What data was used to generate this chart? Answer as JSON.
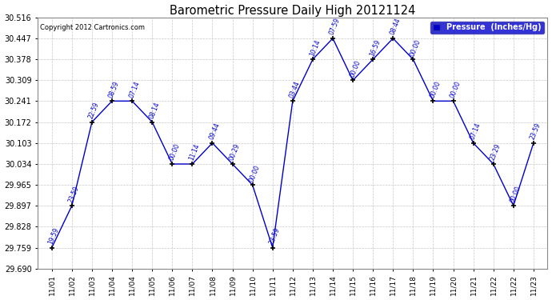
{
  "title": "Barometric Pressure Daily High 20121124",
  "copyright_text": "Copyright 2012 Cartronics.com",
  "legend_label": "Pressure  (Inches/Hg)",
  "background_color": "#ffffff",
  "plot_bg_color": "#ffffff",
  "line_color": "#0000cc",
  "marker_color": "#000000",
  "grid_color": "#c8c8c8",
  "ylim": [
    29.69,
    30.516
  ],
  "yticks": [
    29.69,
    29.759,
    29.828,
    29.897,
    29.965,
    30.034,
    30.103,
    30.172,
    30.241,
    30.309,
    30.378,
    30.447,
    30.516
  ],
  "x_dates": [
    "11/01",
    "11/02",
    "11/03",
    "11/04",
    "11/04",
    "11/05",
    "11/06",
    "11/07",
    "11/08",
    "11/09",
    "11/10",
    "11/11",
    "11/12",
    "11/13",
    "11/14",
    "11/15",
    "11/16",
    "11/17",
    "11/18",
    "11/19",
    "11/20",
    "11/21",
    "11/22",
    "11/22",
    "11/23"
  ],
  "x_tick_labels": [
    "11/01",
    "11/02",
    "11/03",
    "11/04",
    "11/04",
    "11/05",
    "11/06",
    "11/07",
    "11/08",
    "11/09",
    "11/10",
    "11/11",
    "11/12",
    "11/13",
    "11/14",
    "11/15",
    "11/16",
    "11/17",
    "11/18",
    "11/19",
    "11/20",
    "11/21",
    "11/22",
    "11/22",
    "11/23"
  ],
  "data_points": [
    {
      "x": 0,
      "time": "19:59",
      "value": 29.759
    },
    {
      "x": 1,
      "time": "23:59",
      "value": 29.897
    },
    {
      "x": 2,
      "time": "22:59",
      "value": 30.172
    },
    {
      "x": 3,
      "time": "08:59",
      "value": 30.241
    },
    {
      "x": 4,
      "time": "07:14",
      "value": 30.241
    },
    {
      "x": 5,
      "time": "08:14",
      "value": 30.172
    },
    {
      "x": 6,
      "time": "00:00",
      "value": 30.034
    },
    {
      "x": 7,
      "time": "11:14",
      "value": 30.034
    },
    {
      "x": 8,
      "time": "09:44",
      "value": 30.103
    },
    {
      "x": 9,
      "time": "00:29",
      "value": 30.034
    },
    {
      "x": 10,
      "time": "00:00",
      "value": 29.965
    },
    {
      "x": 11,
      "time": "23:59",
      "value": 29.759
    },
    {
      "x": 12,
      "time": "03:44",
      "value": 30.241
    },
    {
      "x": 13,
      "time": "10:14",
      "value": 30.378
    },
    {
      "x": 14,
      "time": "07:59",
      "value": 30.447
    },
    {
      "x": 15,
      "time": "00:00",
      "value": 30.309
    },
    {
      "x": 16,
      "time": "16:59",
      "value": 30.378
    },
    {
      "x": 17,
      "time": "08:44",
      "value": 30.447
    },
    {
      "x": 18,
      "time": "00:00",
      "value": 30.378
    },
    {
      "x": 19,
      "time": "00:00",
      "value": 30.241
    },
    {
      "x": 20,
      "time": "00:00",
      "value": 30.241
    },
    {
      "x": 21,
      "time": "07:14",
      "value": 30.103
    },
    {
      "x": 22,
      "time": "23:29",
      "value": 30.034
    },
    {
      "x": 23,
      "time": "00:00",
      "value": 29.897
    },
    {
      "x": 24,
      "time": "23:59",
      "value": 30.103
    }
  ]
}
